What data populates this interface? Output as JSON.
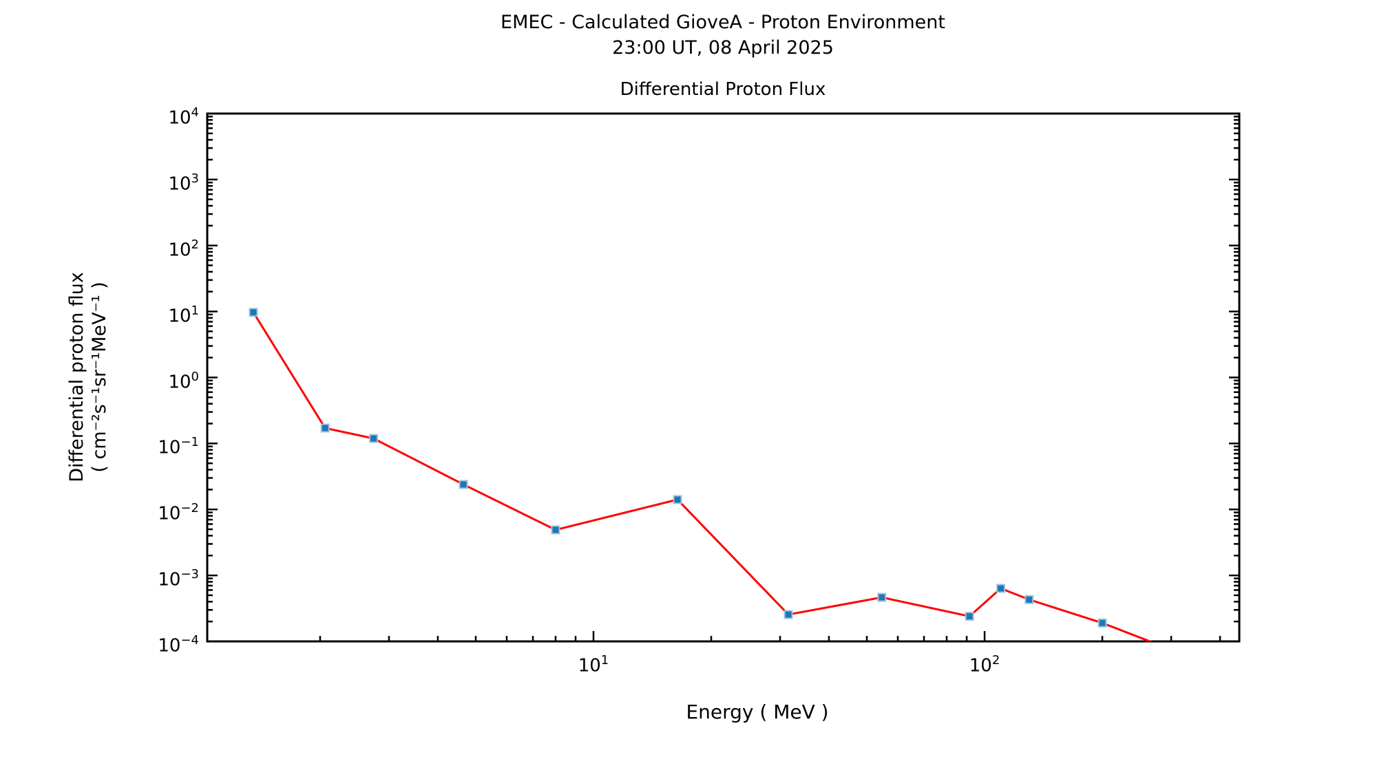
{
  "header": {
    "title": "EMEC - Calculated GioveA - Proton Environment",
    "subtitle": "23:00 UT, 08 April 2025"
  },
  "chart_data": {
    "type": "line",
    "title": "Differential Proton Flux",
    "xlabel": "Energy ( MeV )",
    "ylabel_line1": "Differential proton flux",
    "ylabel_line2": "( cm⁻²s⁻¹sr⁻¹MeV⁻¹ )",
    "xscale": "log",
    "yscale": "log",
    "xlim": [
      1.029,
      448
    ],
    "ylim": [
      0.0001,
      10000
    ],
    "grid": false,
    "legend": "none",
    "x_ticks": [
      {
        "value": 10,
        "exp": "1"
      },
      {
        "value": 100,
        "exp": "2"
      }
    ],
    "y_ticks": [
      {
        "value": 10000,
        "exp": "4"
      },
      {
        "value": 1000,
        "exp": "3"
      },
      {
        "value": 100,
        "exp": "2"
      },
      {
        "value": 10,
        "exp": "1"
      },
      {
        "value": 1,
        "exp": "0"
      },
      {
        "value": 0.1,
        "exp": "−1"
      },
      {
        "value": 0.01,
        "exp": "−2"
      },
      {
        "value": 0.001,
        "exp": "−3"
      },
      {
        "value": 0.0001,
        "exp": "−4"
      }
    ],
    "minor_ticks": "log-decades-2-to-9",
    "colors": {
      "line": "#ff0000",
      "marker_fill": "#1f77b4",
      "marker_edge": "#9dc6e0",
      "axis": "#000000"
    },
    "series": [
      {
        "name": "differential-proton-flux",
        "marker": "square",
        "x": [
          1.35,
          2.06,
          2.74,
          4.65,
          8.0,
          16.4,
          31.5,
          54.6,
          91.5,
          110,
          130,
          200,
          300
        ],
        "y": [
          9.7,
          0.171,
          0.119,
          0.0239,
          0.0049,
          0.0141,
          0.000255,
          0.000465,
          0.00024,
          0.000635,
          0.00043,
          0.00019,
          7.5e-05
        ]
      }
    ]
  }
}
